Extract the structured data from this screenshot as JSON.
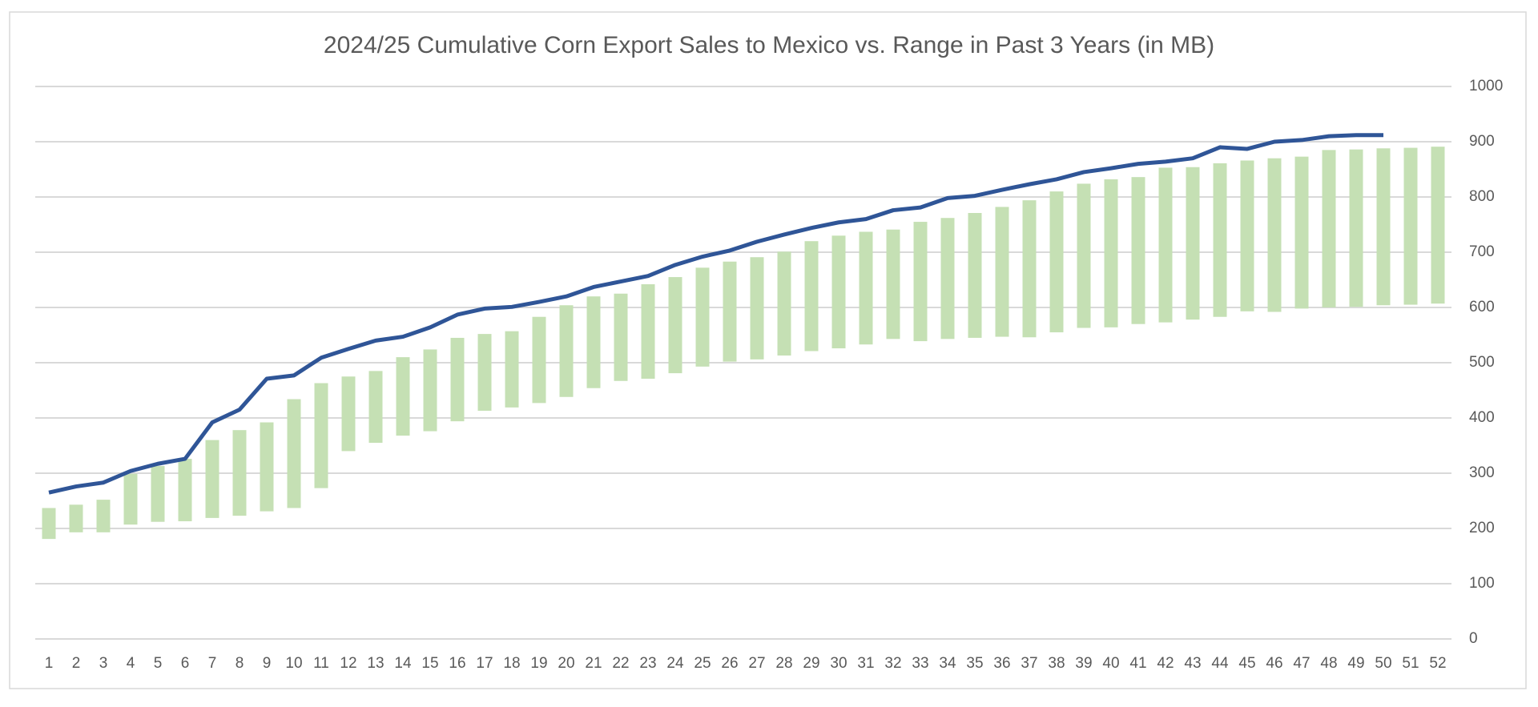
{
  "chart_data": {
    "type": "combo",
    "title": "2024/25 Cumulative Corn Export Sales to Mexico vs. Range in Past 3 Years (in MB)",
    "categories": [
      1,
      2,
      3,
      4,
      5,
      6,
      7,
      8,
      9,
      10,
      11,
      12,
      13,
      14,
      15,
      16,
      17,
      18,
      19,
      20,
      21,
      22,
      23,
      24,
      25,
      26,
      27,
      28,
      29,
      30,
      31,
      32,
      33,
      34,
      35,
      36,
      37,
      38,
      39,
      40,
      41,
      42,
      43,
      44,
      45,
      46,
      47,
      48,
      49,
      50,
      51,
      52
    ],
    "range": {
      "color": "#c5e0b4",
      "low": [
        181,
        193,
        193,
        207,
        212,
        213,
        219,
        223,
        231,
        237,
        273,
        340,
        355,
        368,
        376,
        394,
        413,
        419,
        427,
        438,
        454,
        467,
        471,
        481,
        493,
        502,
        506,
        513,
        521,
        526,
        533,
        543,
        539,
        543,
        545,
        547,
        546,
        555,
        563,
        564,
        570,
        573,
        578,
        583,
        593,
        592,
        598,
        600,
        601,
        604,
        605,
        607
      ],
      "high": [
        237,
        243,
        252,
        299,
        313,
        326,
        360,
        378,
        392,
        434,
        463,
        475,
        485,
        510,
        524,
        545,
        552,
        557,
        583,
        604,
        620,
        625,
        642,
        655,
        672,
        683,
        691,
        701,
        720,
        730,
        737,
        741,
        755,
        762,
        771,
        782,
        794,
        810,
        824,
        832,
        836,
        853,
        854,
        861,
        866,
        870,
        873,
        885,
        886,
        888,
        889,
        891
      ]
    },
    "line": {
      "color": "#2f5597",
      "values": [
        265,
        276,
        283,
        304,
        317,
        326,
        392,
        415,
        471,
        477,
        509,
        525,
        540,
        547,
        564,
        587,
        598,
        601,
        610,
        620,
        637,
        647,
        657,
        677,
        692,
        703,
        719,
        732,
        744,
        754,
        760,
        776,
        781,
        798,
        802,
        813,
        823,
        832,
        845,
        852,
        860,
        864,
        870,
        890,
        887,
        900,
        903,
        910,
        912,
        912,
        null,
        null
      ]
    },
    "ylim": [
      0,
      1000
    ],
    "yticks": [
      0,
      100,
      200,
      300,
      400,
      500,
      600,
      700,
      800,
      900,
      1000
    ],
    "grid": true,
    "y_axis_side": "right"
  }
}
